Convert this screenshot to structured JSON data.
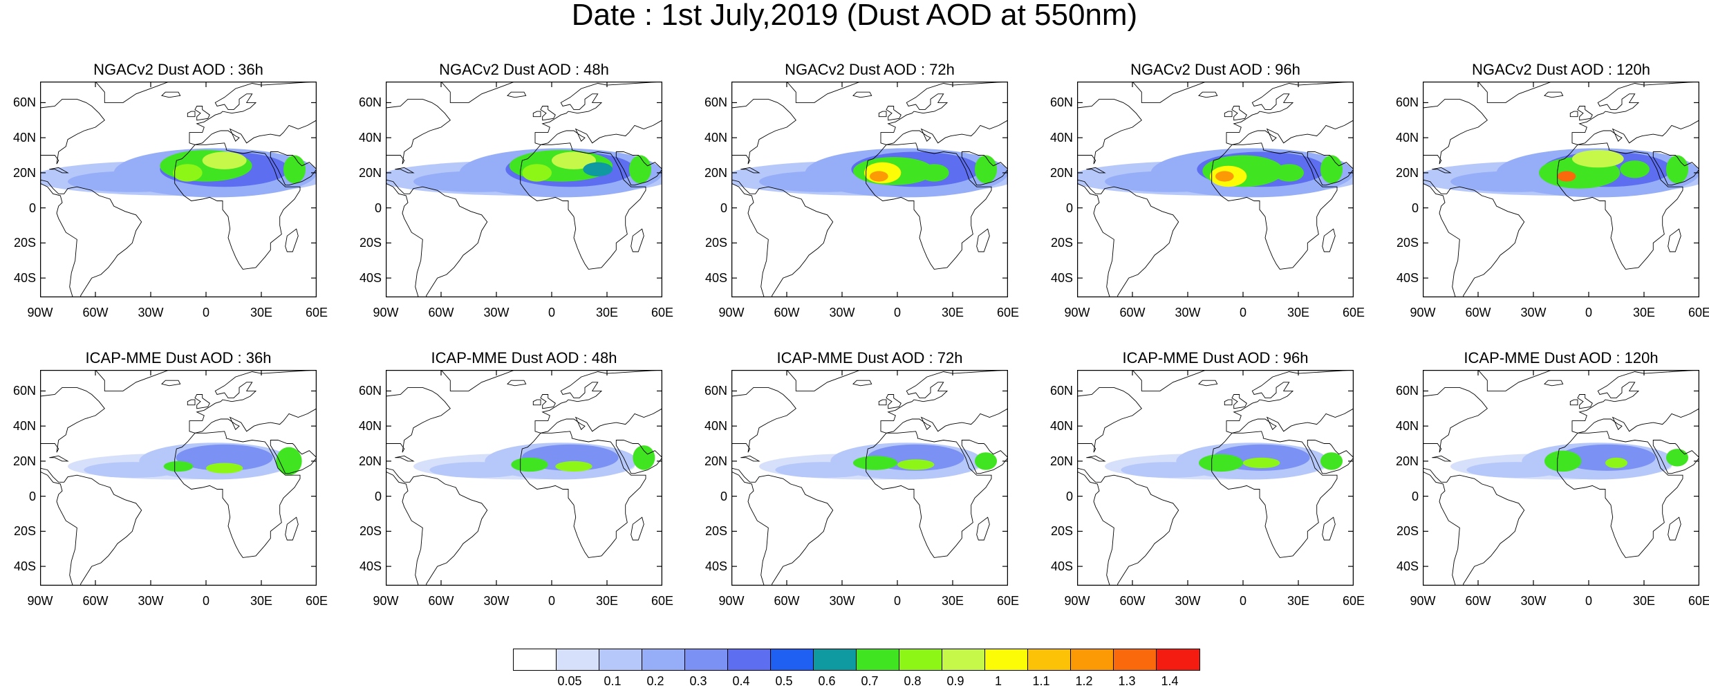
{
  "title": "Date : 1st July,2019 (Dust AOD at 550nm)",
  "panel_titles": [
    "NGACv2 Dust AOD : 36h",
    "NGACv2 Dust AOD : 48h",
    "NGACv2 Dust AOD : 72h",
    "NGACv2 Dust AOD : 96h",
    "NGACv2 Dust AOD : 120h",
    "ICAP-MME Dust AOD : 36h",
    "ICAP-MME Dust AOD : 48h",
    "ICAP-MME Dust AOD : 72h",
    "ICAP-MME Dust AOD : 96h",
    "ICAP-MME Dust AOD : 120h"
  ],
  "lat_labels": [
    "60N",
    "40N",
    "20N",
    "0",
    "20S",
    "40S"
  ],
  "lon_labels": [
    "90W",
    "60W",
    "30W",
    "0",
    "30E",
    "60E"
  ],
  "colorbar": {
    "levels": [
      "0.05",
      "0.1",
      "0.2",
      "0.3",
      "0.4",
      "0.5",
      "0.6",
      "0.7",
      "0.8",
      "0.9",
      "1",
      "1.1",
      "1.2",
      "1.3",
      "1.4"
    ],
    "colors": [
      "#ffffff",
      "#d6e0fb",
      "#b6c7fa",
      "#96aef8",
      "#7b92f4",
      "#5d6ef0",
      "#1f5ff2",
      "#0e9aa0",
      "#40e420",
      "#8ef616",
      "#c6f84a",
      "#fcfc06",
      "#fcc208",
      "#fc9a06",
      "#fa6a0c",
      "#f41c10"
    ]
  },
  "colors": {
    "land_outline": "#000000",
    "background": "#ffffff"
  }
}
